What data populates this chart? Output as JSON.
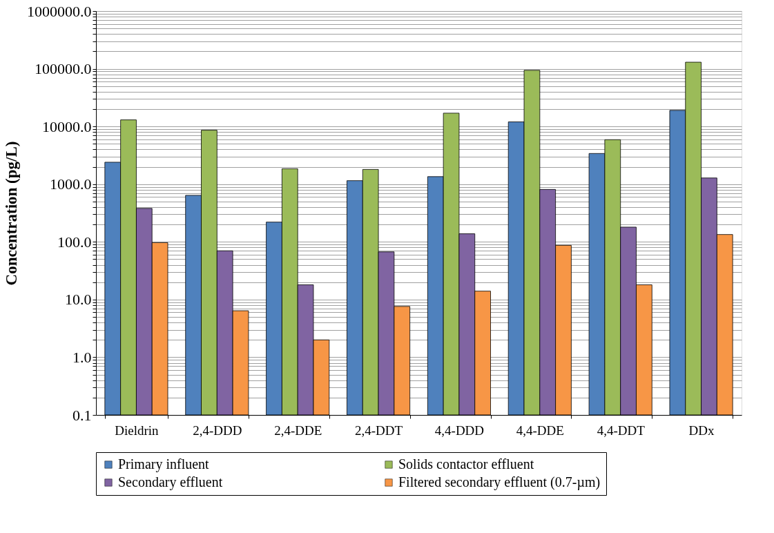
{
  "chart_data": {
    "type": "bar",
    "ylabel": "Concentration (pg/L)",
    "log": true,
    "grid": "y",
    "legend": "bottom",
    "categories": [
      "Dieldrin",
      "2,4-DDD",
      "2,4-DDE",
      "2,4-DDT",
      "4,4-DDD",
      "4,4-DDE",
      "4,4-DDT",
      "DDx"
    ],
    "series": [
      {
        "name": "Primary influent",
        "color": "#4f81bd",
        "values": [
          2400,
          640,
          220,
          1150,
          1350,
          12000,
          3400,
          19000
        ]
      },
      {
        "name": "Solids contactor effluent",
        "color": "#9bbb59",
        "values": [
          13000,
          8600,
          1850,
          1800,
          17000,
          94000,
          5900,
          130000
        ]
      },
      {
        "name": "Secondary effluent",
        "color": "#8064a2",
        "values": [
          380,
          70,
          18,
          67,
          138,
          810,
          180,
          1280
        ]
      },
      {
        "name": "Filtered secondary effluent (0.7-µm)",
        "color": "#f79646",
        "values": [
          97,
          6.4,
          2.0,
          7.6,
          14,
          87,
          18,
          134
        ]
      }
    ],
    "ylim": [
      0.1,
      1000000
    ],
    "yticks": [
      {
        "value": 0.1,
        "label": "0.1"
      },
      {
        "value": 0.2,
        "label": null
      },
      {
        "value": 0.3,
        "label": null
      },
      {
        "value": 0.4,
        "label": null
      },
      {
        "value": 0.5,
        "label": null
      },
      {
        "value": 0.6,
        "label": null
      },
      {
        "value": 0.7,
        "label": null
      },
      {
        "value": 0.8,
        "label": null
      },
      {
        "value": 0.9,
        "label": null
      },
      {
        "value": 1,
        "label": "1.0"
      },
      {
        "value": 2,
        "label": null
      },
      {
        "value": 3,
        "label": null
      },
      {
        "value": 4,
        "label": null
      },
      {
        "value": 5,
        "label": null
      },
      {
        "value": 6,
        "label": null
      },
      {
        "value": 7,
        "label": null
      },
      {
        "value": 8,
        "label": null
      },
      {
        "value": 9,
        "label": null
      },
      {
        "value": 10,
        "label": "10.0"
      },
      {
        "value": 20,
        "label": null
      },
      {
        "value": 30,
        "label": null
      },
      {
        "value": 40,
        "label": null
      },
      {
        "value": 50,
        "label": null
      },
      {
        "value": 60,
        "label": null
      },
      {
        "value": 70,
        "label": null
      },
      {
        "value": 80,
        "label": null
      },
      {
        "value": 90,
        "label": null
      },
      {
        "value": 100,
        "label": "100.0"
      },
      {
        "value": 200,
        "label": null
      },
      {
        "value": 300,
        "label": null
      },
      {
        "value": 400,
        "label": null
      },
      {
        "value": 500,
        "label": null
      },
      {
        "value": 600,
        "label": null
      },
      {
        "value": 700,
        "label": null
      },
      {
        "value": 800,
        "label": null
      },
      {
        "value": 900,
        "label": null
      },
      {
        "value": 1000,
        "label": "1000.0"
      },
      {
        "value": 2000,
        "label": null
      },
      {
        "value": 3000,
        "label": null
      },
      {
        "value": 4000,
        "label": null
      },
      {
        "value": 5000,
        "label": null
      },
      {
        "value": 6000,
        "label": null
      },
      {
        "value": 7000,
        "label": null
      },
      {
        "value": 8000,
        "label": null
      },
      {
        "value": 9000,
        "label": null
      },
      {
        "value": 10000,
        "label": "10000.0"
      },
      {
        "value": 20000,
        "label": null
      },
      {
        "value": 30000,
        "label": null
      },
      {
        "value": 40000,
        "label": null
      },
      {
        "value": 50000,
        "label": null
      },
      {
        "value": 60000,
        "label": null
      },
      {
        "value": 70000,
        "label": null
      },
      {
        "value": 80000,
        "label": null
      },
      {
        "value": 90000,
        "label": null
      },
      {
        "value": 100000,
        "label": "100000.0"
      },
      {
        "value": 200000,
        "label": null
      },
      {
        "value": 300000,
        "label": null
      },
      {
        "value": 400000,
        "label": null
      },
      {
        "value": 500000,
        "label": null
      },
      {
        "value": 600000,
        "label": null
      },
      {
        "value": 700000,
        "label": null
      },
      {
        "value": 800000,
        "label": null
      },
      {
        "value": 900000,
        "label": null
      },
      {
        "value": 1000000,
        "label": "1000000.0"
      }
    ]
  }
}
